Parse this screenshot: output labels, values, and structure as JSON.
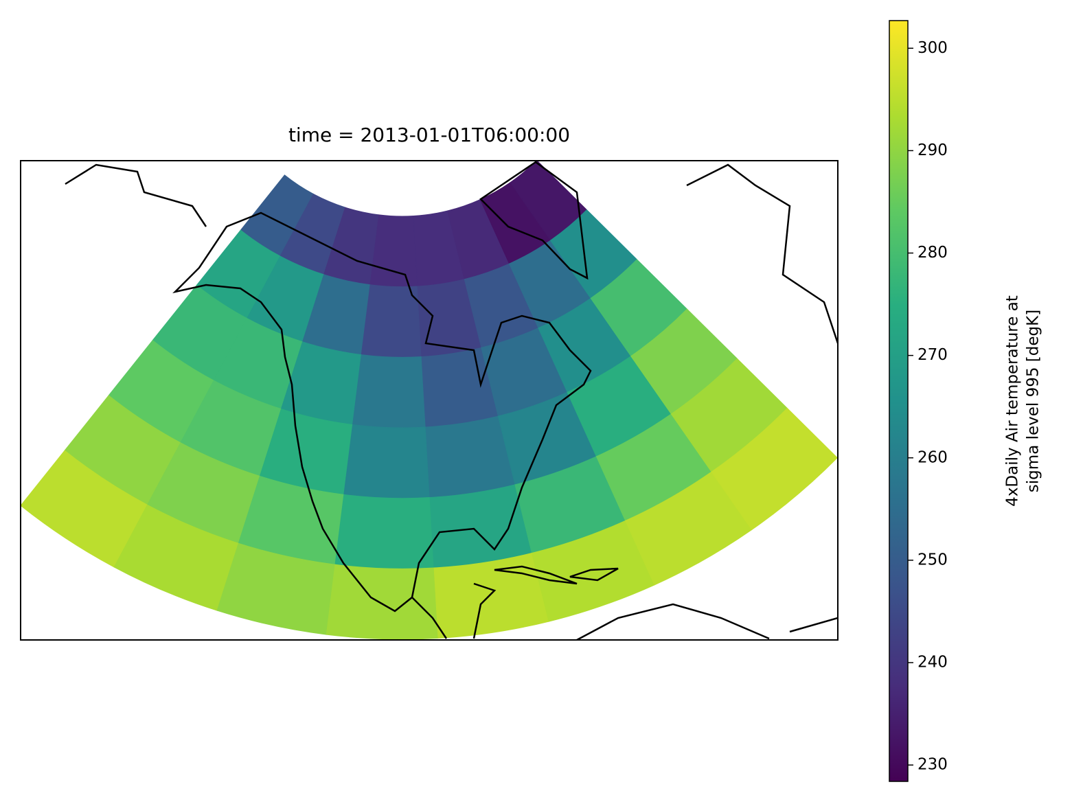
{
  "chart_data": {
    "type": "map",
    "title": "time = 2013-01-01T06:00:00",
    "colorbar_label": [
      "4xDaily Air temperature at",
      "sigma level 995 [degK]"
    ],
    "colormap": "viridis",
    "clim": [
      228.4,
      302.7
    ],
    "cticks": [
      230,
      240,
      250,
      260,
      270,
      280,
      290,
      300
    ],
    "values": [
      [
        250,
        245,
        240,
        238,
        238,
        237,
        232,
        233
      ],
      [
        272,
        268,
        255,
        245,
        243,
        248,
        255,
        265
      ],
      [
        278,
        278,
        268,
        258,
        250,
        255,
        265,
        280
      ],
      [
        284,
        282,
        275,
        262,
        258,
        262,
        275,
        288
      ],
      [
        290,
        288,
        283,
        275,
        272,
        278,
        285,
        292
      ],
      [
        295,
        293,
        290,
        292,
        295,
        294,
        295,
        296
      ]
    ]
  }
}
